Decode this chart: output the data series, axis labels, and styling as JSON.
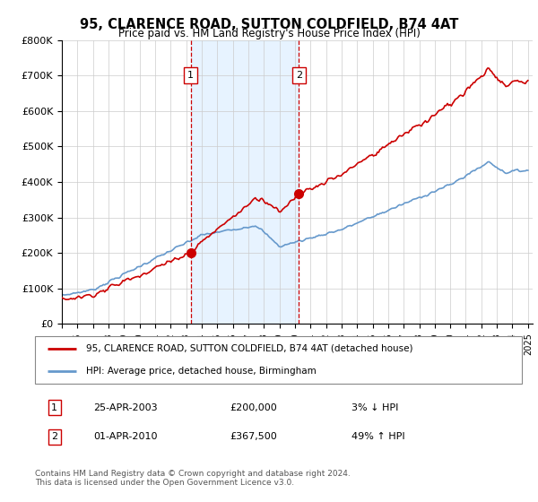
{
  "title": "95, CLARENCE ROAD, SUTTON COLDFIELD, B74 4AT",
  "subtitle": "Price paid vs. HM Land Registry's House Price Index (HPI)",
  "hpi_color": "#6699cc",
  "price_color": "#cc0000",
  "vline_color": "#cc0000",
  "shade_color": "#ddeeff",
  "ylim": [
    0,
    800000
  ],
  "yticks": [
    0,
    100000,
    200000,
    300000,
    400000,
    500000,
    600000,
    700000,
    800000
  ],
  "ytick_labels": [
    "£0",
    "£100K",
    "£200K",
    "£300K",
    "£400K",
    "£500K",
    "£600K",
    "£700K",
    "£800K"
  ],
  "t1_year": 2003.29,
  "t2_year": 2010.25,
  "t1_price": 200000,
  "t2_price": 367500,
  "legend_line1": "95, CLARENCE ROAD, SUTTON COLDFIELD, B74 4AT (detached house)",
  "legend_line2": "HPI: Average price, detached house, Birmingham",
  "note1_date": "25-APR-2003",
  "note1_price": "£200,000",
  "note1_hpi": "3% ↓ HPI",
  "note2_date": "01-APR-2010",
  "note2_price": "£367,500",
  "note2_hpi": "49% ↑ HPI",
  "footer": "Contains HM Land Registry data © Crown copyright and database right 2024.\nThis data is licensed under the Open Government Licence v3.0."
}
